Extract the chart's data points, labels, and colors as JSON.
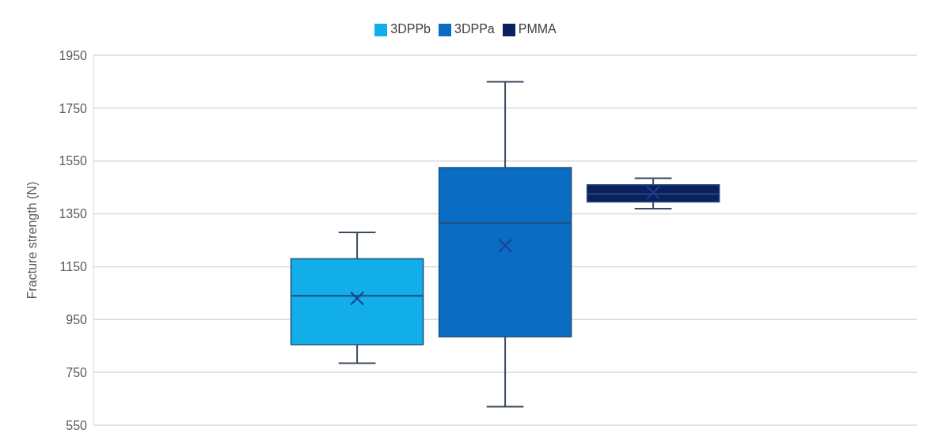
{
  "chart_data": {
    "type": "box",
    "ylabel": "Fracture  strength (N)",
    "categories": [
      null
    ],
    "series": [
      {
        "name": "3DPPb",
        "color": "#12aeea",
        "boxes": [
          {
            "low": 785,
            "q1": 855,
            "median": 1040,
            "q3": 1180,
            "high": 1280,
            "mean": 1030
          }
        ]
      },
      {
        "name": "3DPPa",
        "color": "#0b6cc3",
        "boxes": [
          {
            "low": 620,
            "q1": 885,
            "median": 1315,
            "q3": 1525,
            "high": 1850,
            "mean": 1230
          }
        ]
      },
      {
        "name": "PMMA",
        "color": "#0c1f5e",
        "boxes": [
          {
            "low": 1370,
            "q1": 1395,
            "median": 1425,
            "q3": 1460,
            "high": 1485,
            "mean": 1430
          }
        ]
      }
    ],
    "ylim": [
      550,
      1950
    ],
    "yticks": [
      550,
      750,
      950,
      1150,
      1350,
      1550,
      1750,
      1950
    ],
    "grid": "y",
    "legend": "top",
    "tick_labels": "y"
  }
}
